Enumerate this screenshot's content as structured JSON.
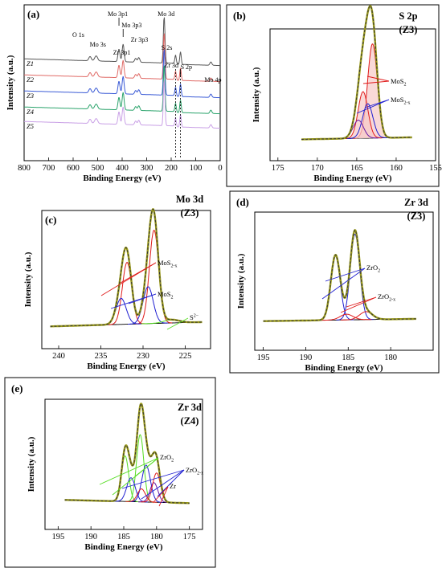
{
  "colors": {
    "z1": "#555555",
    "z2": "#e06a66",
    "z3": "#3b5bd6",
    "z4": "#2aa36b",
    "z5": "#c9a0e6",
    "envelope": "#333333",
    "fit": "#9a9a1a",
    "background": "#000000",
    "red": "#e01b1b",
    "blue": "#1f1fd1",
    "purple": "#6a1aa6",
    "green": "#55dd22",
    "shade_red": "#f6c9c7",
    "shade_blue": "#c9d6f7"
  },
  "chart_data": [
    {
      "panel": "(a)",
      "type": "line",
      "xlabel": "Binding Energy (eV)",
      "ylabel": "Intensity (a.u.)",
      "xlim": [
        800,
        0
      ],
      "x_reversed": true,
      "xticks": [
        800,
        700,
        600,
        500,
        400,
        300,
        200,
        100,
        0
      ],
      "series_labels": [
        "Z1",
        "Z2",
        "Z3",
        "Z4",
        "Z5"
      ],
      "peak_labels": [
        {
          "text": "O 1s",
          "x": 531
        },
        {
          "text": "Mo 3s",
          "x": 506
        },
        {
          "text": "Mo 3p1",
          "x": 413
        },
        {
          "text": "Mo 3p3",
          "x": 396
        },
        {
          "text": "Zr 3p1",
          "x": 345
        },
        {
          "text": "Zr 3p3",
          "x": 332
        },
        {
          "text": "S 2s",
          "x": 227
        },
        {
          "text": "Mo 3d",
          "x": 229
        },
        {
          "text": "Zr 3d",
          "x": 182
        },
        {
          "text": "S 2p",
          "x": 162
        },
        {
          "text": "Mo 4p",
          "x": 38
        }
      ],
      "peaks": [
        {
          "x": 531,
          "h": 0.1,
          "w": 5
        },
        {
          "x": 506,
          "h": 0.12,
          "w": 6
        },
        {
          "x": 413,
          "h": 0.3,
          "w": 4
        },
        {
          "x": 396,
          "h": 0.42,
          "w": 4
        },
        {
          "x": 345,
          "h": 0.09,
          "w": 4
        },
        {
          "x": 332,
          "h": 0.11,
          "w": 4
        },
        {
          "x": 229,
          "h": 1.0,
          "w": 3
        },
        {
          "x": 226,
          "h": 0.18,
          "w": 3
        },
        {
          "x": 182,
          "h": 0.2,
          "w": 3
        },
        {
          "x": 162,
          "h": 0.3,
          "w": 3
        },
        {
          "x": 38,
          "h": 0.08,
          "w": 4
        }
      ]
    },
    {
      "panel": "(b)",
      "type": "line",
      "title": "S 2p",
      "subtitle": "(Z3)",
      "xlabel": "Binding Energy (eV)",
      "ylabel": "Intensity (a.u.)",
      "xlim": [
        176,
        155
      ],
      "x_reversed": true,
      "xticks": [
        175,
        170,
        165,
        160,
        155
      ],
      "fit_range": [
        172,
        158
      ],
      "background_level": [
        0.02,
        0.04
      ],
      "components": [
        {
          "label": "MoS2",
          "center": 163.0,
          "amp": 0.93,
          "sigma": 0.62,
          "color": "red",
          "shade": "shade_red"
        },
        {
          "label": "MoS2",
          "center": 164.2,
          "amp": 0.46,
          "sigma": 0.62,
          "color": "red",
          "shade": "shade_red"
        },
        {
          "label": "MoS2-x",
          "center": 163.6,
          "amp": 0.34,
          "sigma": 0.65,
          "color": "blue"
        },
        {
          "label": "MoS2-x",
          "center": 164.8,
          "amp": 0.18,
          "sigma": 0.65,
          "color": "purple"
        }
      ],
      "annotations": [
        {
          "base": "MoS",
          "sub": "2"
        },
        {
          "base": "MoS",
          "sub": "2-x"
        }
      ]
    },
    {
      "panel": "(c)",
      "type": "line",
      "title": "Mo 3d",
      "subtitle": "(Z3)",
      "xlabel": "Binding Energy (eV)",
      "ylabel": "Intensity (a.u.)",
      "xlim": [
        242,
        222
      ],
      "x_reversed": true,
      "xticks": [
        240,
        235,
        230,
        225
      ],
      "fit_range": [
        241,
        223
      ],
      "background_level": [
        0.02,
        0.06
      ],
      "components": [
        {
          "label": "MoS2-x",
          "center": 228.7,
          "amp": 0.86,
          "sigma": 0.55,
          "color": "red"
        },
        {
          "label": "MoS2-x",
          "center": 231.9,
          "amp": 0.57,
          "sigma": 0.55,
          "color": "red"
        },
        {
          "label": "MoS2",
          "center": 229.4,
          "amp": 0.34,
          "sigma": 0.6,
          "color": "blue"
        },
        {
          "label": "MoS2",
          "center": 232.6,
          "amp": 0.24,
          "sigma": 0.6,
          "color": "blue"
        },
        {
          "label": "S2-",
          "center": 226.6,
          "amp": 0.03,
          "sigma": 0.9,
          "color": "green"
        }
      ],
      "annotations": [
        {
          "base": "MoS",
          "sub": "2-x"
        },
        {
          "base": "MoS",
          "sub": "2"
        },
        {
          "base": "S",
          "sup": "2−"
        }
      ]
    },
    {
      "panel": "(d)",
      "type": "line",
      "title": "Zr 3d",
      "subtitle": "(Z3)",
      "xlabel": "Binding Energy (eV)",
      "ylabel": "Intensity (a.u.)",
      "xlim": [
        196,
        175
      ],
      "x_reversed": true,
      "xticks": [
        195,
        190,
        185,
        180
      ],
      "fit_range": [
        195,
        177
      ],
      "background_level": [
        0.03,
        0.05
      ],
      "components": [
        {
          "label": "ZrO2",
          "center": 184.2,
          "amp": 0.75,
          "sigma": 0.55,
          "color": "blue"
        },
        {
          "label": "ZrO2",
          "center": 186.5,
          "amp": 0.56,
          "sigma": 0.55,
          "color": "blue"
        },
        {
          "label": "ZrO2-x",
          "center": 182.9,
          "amp": 0.07,
          "sigma": 0.75,
          "color": "red"
        },
        {
          "label": "ZrO2-x",
          "center": 185.2,
          "amp": 0.05,
          "sigma": 0.75,
          "color": "red"
        }
      ],
      "annotations": [
        {
          "base": "ZrO",
          "sub": "2"
        },
        {
          "base": "ZrO",
          "sub": "2-x"
        }
      ]
    },
    {
      "panel": "(e)",
      "type": "line",
      "title": "Zr 3d",
      "subtitle": "(Z4)",
      "xlabel": "Binding Energy (eV)",
      "ylabel": "Intensity (a.u.)",
      "xlim": [
        197,
        173
      ],
      "x_reversed": true,
      "xticks": [
        195,
        190,
        185,
        180,
        175
      ],
      "fit_range": [
        194,
        175
      ],
      "background_level": [
        0.05,
        0.02
      ],
      "components": [
        {
          "label": "ZrO2",
          "center": 182.5,
          "amp": 0.62,
          "sigma": 0.55,
          "color": "green"
        },
        {
          "label": "ZrO2",
          "center": 184.8,
          "amp": 0.42,
          "sigma": 0.55,
          "color": "green"
        },
        {
          "label": "ZrO2-x",
          "center": 181.6,
          "amp": 0.34,
          "sigma": 0.65,
          "color": "blue"
        },
        {
          "label": "ZrO2-x",
          "center": 183.9,
          "amp": 0.22,
          "sigma": 0.65,
          "color": "blue"
        },
        {
          "label": "ZrO2-x",
          "center": 180.4,
          "amp": 0.18,
          "sigma": 0.6,
          "color": "purple"
        },
        {
          "label": "Zr",
          "center": 180.0,
          "amp": 0.27,
          "sigma": 0.6,
          "color": "red"
        },
        {
          "label": "Zr",
          "center": 182.3,
          "amp": 0.12,
          "sigma": 0.6,
          "color": "red"
        }
      ],
      "annotations": [
        {
          "base": "ZrO",
          "sub": "2"
        },
        {
          "base": "ZrO",
          "sub": "2-x"
        },
        {
          "base": "Zr"
        }
      ]
    }
  ]
}
